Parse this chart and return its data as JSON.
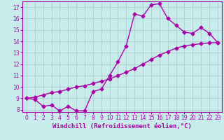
{
  "xlabel": "Windchill (Refroidissement éolien,°C)",
  "background_color": "#c8ecec",
  "line_color": "#aa00aa",
  "grid_color": "#aacccc",
  "xlim": [
    -0.5,
    23.5
  ],
  "ylim": [
    7.8,
    17.5
  ],
  "xticks": [
    0,
    1,
    2,
    3,
    4,
    5,
    6,
    7,
    8,
    9,
    10,
    11,
    12,
    13,
    14,
    15,
    16,
    17,
    18,
    19,
    20,
    21,
    22,
    23
  ],
  "yticks": [
    8,
    9,
    10,
    11,
    12,
    13,
    14,
    15,
    16,
    17
  ],
  "line1_x": [
    0,
    1,
    2,
    3,
    4,
    5,
    6,
    7,
    8,
    9,
    10,
    11,
    12,
    13,
    14,
    15,
    16,
    17,
    18,
    19,
    20,
    21,
    22,
    23
  ],
  "line1_y": [
    9.0,
    8.9,
    8.3,
    8.4,
    7.9,
    8.3,
    7.9,
    7.9,
    9.6,
    9.8,
    11.0,
    12.2,
    13.6,
    16.4,
    16.2,
    17.2,
    17.3,
    16.0,
    15.4,
    14.8,
    14.7,
    15.2,
    14.7,
    13.9
  ],
  "line2_x": [
    0,
    1,
    2,
    3,
    4,
    5,
    6,
    7,
    8,
    9,
    10,
    11,
    12,
    13,
    14,
    15,
    16,
    17,
    18,
    19,
    20,
    21,
    22,
    23
  ],
  "line2_y": [
    9.0,
    9.1,
    9.3,
    9.5,
    9.6,
    9.8,
    10.0,
    10.1,
    10.3,
    10.5,
    10.7,
    11.0,
    11.3,
    11.6,
    12.0,
    12.4,
    12.8,
    13.1,
    13.4,
    13.6,
    13.7,
    13.8,
    13.85,
    13.9
  ],
  "marker": "D",
  "markersize": 2.5,
  "linewidth": 1.0,
  "tick_fontsize": 5.5,
  "label_fontsize": 6.5
}
